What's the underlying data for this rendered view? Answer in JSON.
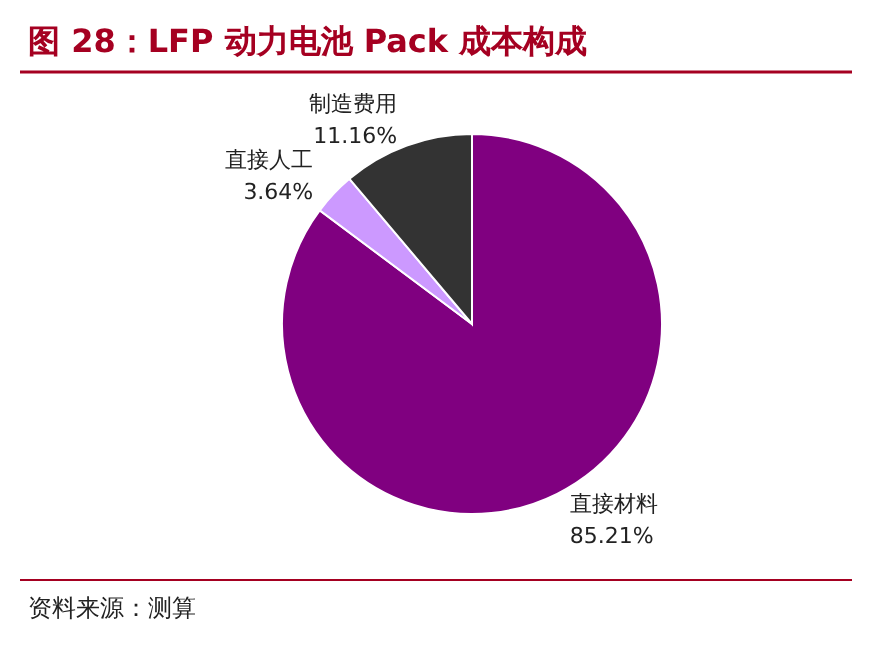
{
  "chart_data": {
    "type": "pie",
    "title": "图 28：LFP 动力电池 Pack 成本构成",
    "categories": [
      "直接材料",
      "直接人工",
      "制造费用"
    ],
    "values": [
      85.21,
      3.64,
      11.16
    ],
    "colors": [
      "#800080",
      "#cc99ff",
      "#333333"
    ],
    "value_labels": [
      "85.21%",
      "3.64%",
      "11.16%"
    ],
    "annotations": [
      "资料来源：测算"
    ]
  }
}
